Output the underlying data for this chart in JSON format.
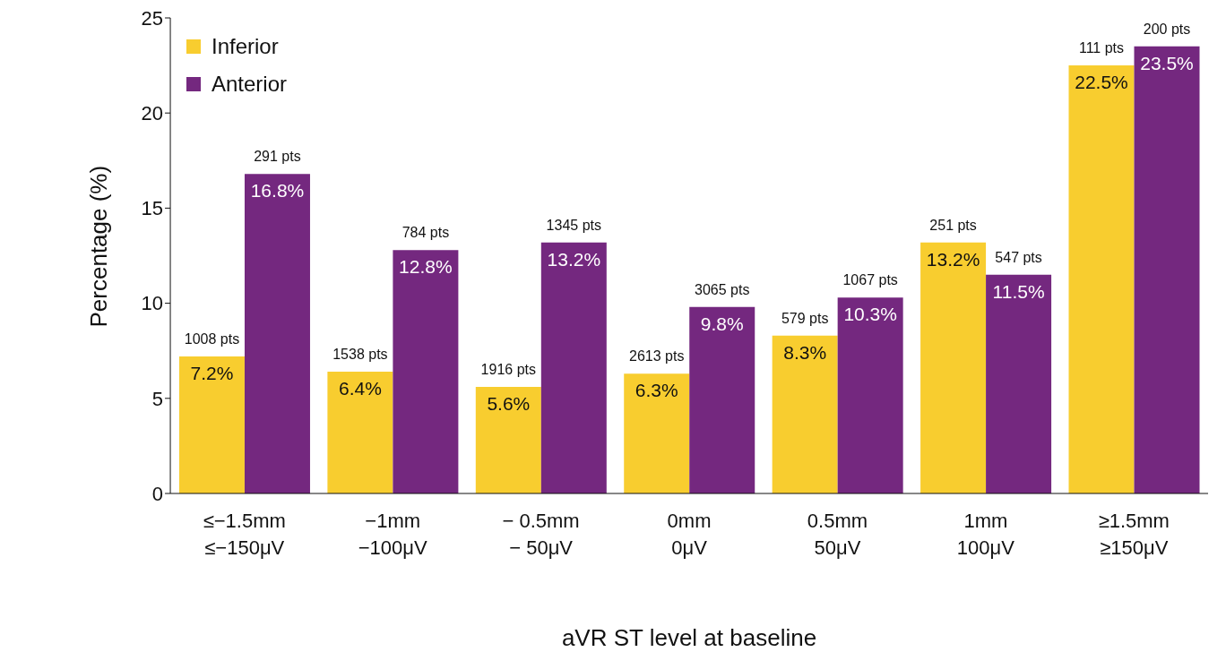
{
  "chart_data": {
    "type": "bar",
    "xlabel": "aVR ST level at baseline",
    "ylabel": "Percentage (%)",
    "categories": [
      "≤−1.5mm\n≤−150μV",
      "−1mm\n−100μV",
      "− 0.5mm\n− 50μV",
      "0mm\n0μV",
      "0.5mm\n50μV",
      "1mm\n100μV",
      "≥1.5mm\n≥150μV"
    ],
    "series": [
      {
        "name": "Inferior",
        "color": "#f8cd2f",
        "values": [
          7.2,
          6.4,
          5.6,
          6.3,
          8.3,
          13.2,
          22.5
        ],
        "value_labels": [
          "7.2%",
          "6.4%",
          "5.6%",
          "6.3%",
          "8.3%",
          "13.2%",
          "22.5%"
        ]
      },
      {
        "name": "Anterior",
        "color": "#74287f",
        "values": [
          16.8,
          12.8,
          13.2,
          9.8,
          10.3,
          11.5,
          23.5
        ],
        "value_labels": [
          "16.8%",
          "12.8%",
          "13.2%",
          "9.8%",
          "10.3%",
          "11.5%",
          "23.5%"
        ]
      }
    ],
    "annotations": [
      {
        "text": "1008 pts",
        "x": "≤−1.5mm\n≤−150μV",
        "y": 7.2
      },
      {
        "text": "291 pts",
        "x": "≤−1.5mm\n≤−150μV",
        "y": 16.8
      },
      {
        "text": "1538 pts",
        "x": "−1mm\n−100μV",
        "y": 6.4
      },
      {
        "text": "784 pts",
        "x": "−1mm\n−100μV",
        "y": 12.8
      },
      {
        "text": "1916 pts",
        "x": "− 0.5mm\n− 50μV",
        "y": 5.6
      },
      {
        "text": "1345 pts",
        "x": "− 0.5mm\n− 50μV",
        "y": 13.2
      },
      {
        "text": "2613 pts",
        "x": "0mm\n0μV",
        "y": 6.3
      },
      {
        "text": "3065 pts",
        "x": "0mm\n0μV",
        "y": 9.8
      },
      {
        "text": "579 pts",
        "x": "0.5mm\n50μV",
        "y": 8.3
      },
      {
        "text": "1067 pts",
        "x": "0.5mm\n50μV",
        "y": 10.3
      },
      {
        "text": "251 pts",
        "x": "1mm\n100μV",
        "y": 13.2
      },
      {
        "text": "547 pts",
        "x": "1mm\n100μV",
        "y": 11.5
      },
      {
        "text": "111 pts",
        "x": "≥1.5mm\n≥150μV",
        "y": 22.5
      },
      {
        "text": "200 pts",
        "x": "≥1.5mm\n≥150μV",
        "y": 23.5
      }
    ],
    "ylim": [
      0,
      25
    ],
    "yticks": [
      0,
      5,
      10,
      15,
      20,
      25
    ],
    "grid": false,
    "legend": "top left"
  }
}
